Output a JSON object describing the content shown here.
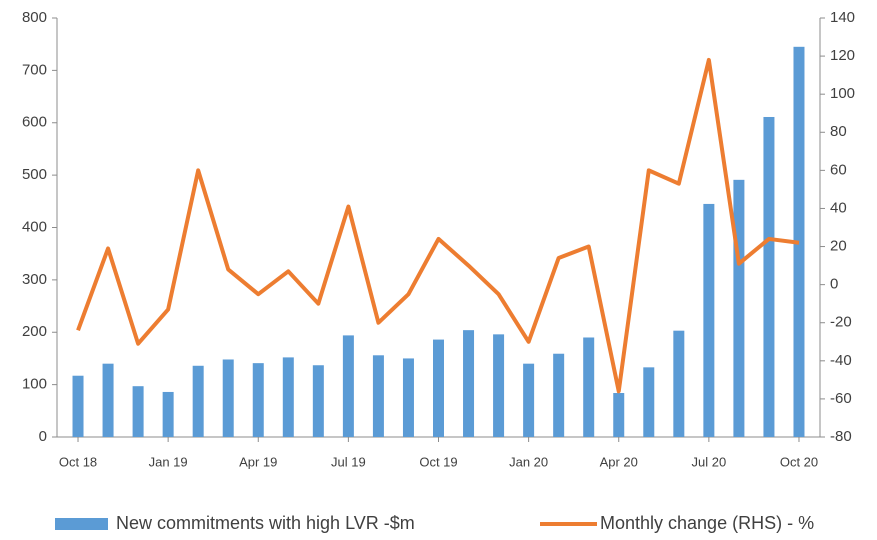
{
  "chart_data": {
    "type": "bar-line",
    "categories": [
      "Oct 18",
      null,
      null,
      "Jan 19",
      null,
      null,
      "Apr 19",
      null,
      null,
      "Jul 19",
      null,
      null,
      "Oct 19",
      null,
      null,
      "Jan 20",
      null,
      null,
      "Apr 20",
      null,
      null,
      "Jul 20",
      null,
      null,
      "Oct 20"
    ],
    "series": [
      {
        "name": "New commitments with high LVR -$m",
        "color": "#5b9bd5",
        "type": "bar",
        "values": [
          117,
          140,
          97,
          86,
          136,
          148,
          141,
          152,
          137,
          194,
          156,
          150,
          186,
          204,
          196,
          140,
          159,
          190,
          84,
          133,
          203,
          445,
          491,
          611,
          745
        ]
      },
      {
        "name": "Monthly change (RHS) - %",
        "color": "#ed7d31",
        "type": "line",
        "axis": "y2",
        "values": [
          -24,
          19,
          -31,
          -13,
          60,
          8,
          -5,
          7,
          -10,
          41,
          -20,
          -5,
          24,
          10,
          -5,
          -30,
          14,
          20,
          -56,
          60,
          53,
          118,
          11,
          24,
          22
        ]
      }
    ],
    "ylim": [
      0,
      800
    ],
    "yticks": [
      0,
      100,
      200,
      300,
      400,
      500,
      600,
      700,
      800
    ],
    "y2lim": [
      -80,
      140
    ],
    "y2ticks": [
      -80,
      -60,
      -40,
      -20,
      0,
      20,
      40,
      60,
      80,
      100,
      120,
      140
    ],
    "legend": "bottom"
  }
}
